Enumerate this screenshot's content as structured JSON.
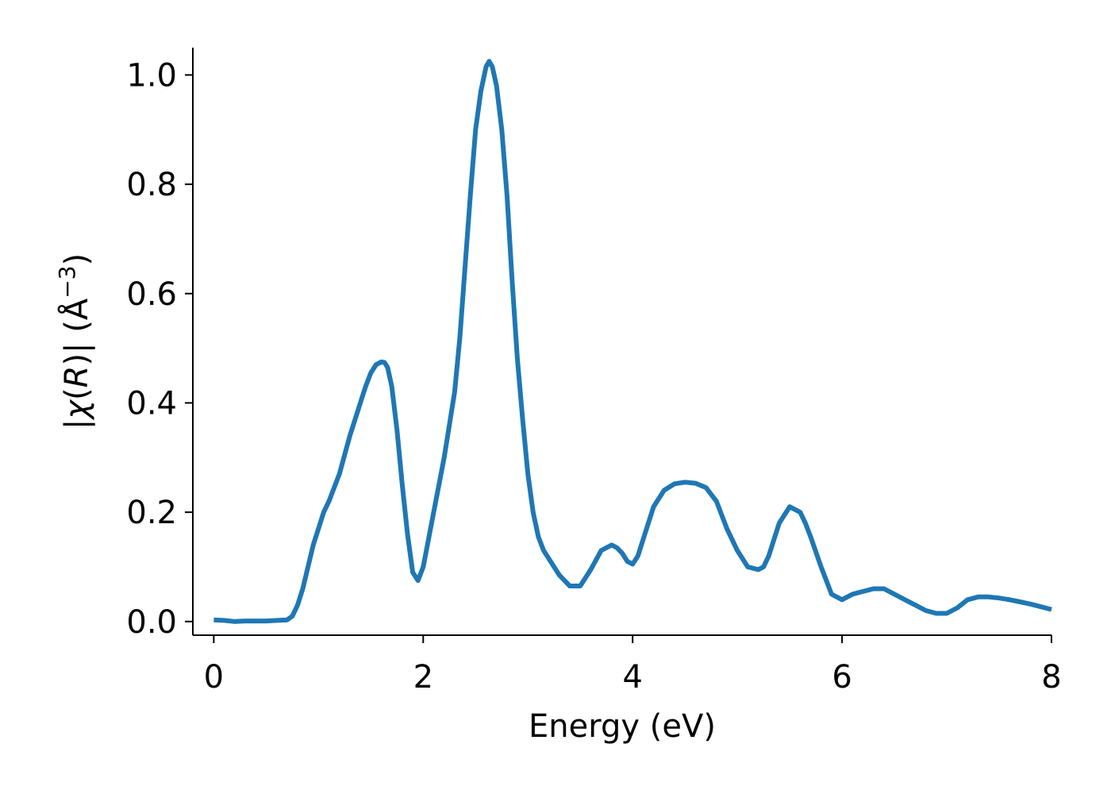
{
  "chart_data": {
    "type": "line",
    "xlabel": "Energy (eV)",
    "ylabel_parts": [
      "|",
      "χ",
      "(",
      "R",
      ")| (Å",
      "−3",
      ")"
    ],
    "xlim": [
      -0.2,
      8.0
    ],
    "ylim": [
      -0.025,
      1.05
    ],
    "xticks": [
      0,
      2,
      4,
      6,
      8
    ],
    "xtick_labels": [
      "0",
      "2",
      "4",
      "6",
      "8"
    ],
    "yticks": [
      0.0,
      0.2,
      0.4,
      0.6,
      0.8,
      1.0
    ],
    "ytick_labels": [
      "0.0",
      "0.2",
      "0.4",
      "0.6",
      "0.8",
      "1.0"
    ],
    "grid": false,
    "line_color": "#1f77b4",
    "series": [
      {
        "x": [
          0.0,
          0.1,
          0.2,
          0.3,
          0.5,
          0.6,
          0.7,
          0.75,
          0.8,
          0.85,
          0.9,
          0.95,
          1.0,
          1.05,
          1.1,
          1.2,
          1.3,
          1.35,
          1.4,
          1.45,
          1.5,
          1.55,
          1.6,
          1.63,
          1.66,
          1.7,
          1.75,
          1.8,
          1.85,
          1.9,
          1.95,
          2.0,
          2.03,
          2.06,
          2.1,
          2.2,
          2.3,
          2.35,
          2.4,
          2.45,
          2.5,
          2.55,
          2.6,
          2.63,
          2.66,
          2.7,
          2.75,
          2.8,
          2.85,
          2.9,
          2.95,
          3.0,
          3.05,
          3.1,
          3.15,
          3.2,
          3.3,
          3.4,
          3.5,
          3.6,
          3.7,
          3.8,
          3.85,
          3.9,
          3.95,
          4.0,
          4.05,
          4.1,
          4.2,
          4.3,
          4.4,
          4.5,
          4.6,
          4.7,
          4.8,
          4.9,
          5.0,
          5.1,
          5.2,
          5.25,
          5.3,
          5.35,
          5.4,
          5.5,
          5.6,
          5.65,
          5.7,
          5.8,
          5.9,
          6.0,
          6.05,
          6.1,
          6.2,
          6.3,
          6.4,
          6.5,
          6.6,
          6.7,
          6.8,
          6.9,
          7.0,
          7.1,
          7.2,
          7.3,
          7.4,
          7.5,
          7.6,
          7.7,
          7.8,
          7.9,
          8.0
        ],
        "y": [
          0.003,
          0.002,
          0.0,
          0.001,
          0.001,
          0.002,
          0.003,
          0.01,
          0.03,
          0.06,
          0.1,
          0.14,
          0.17,
          0.2,
          0.22,
          0.27,
          0.34,
          0.37,
          0.4,
          0.43,
          0.455,
          0.47,
          0.475,
          0.474,
          0.465,
          0.43,
          0.35,
          0.25,
          0.16,
          0.09,
          0.075,
          0.1,
          0.13,
          0.16,
          0.2,
          0.3,
          0.42,
          0.52,
          0.65,
          0.78,
          0.9,
          0.97,
          1.015,
          1.025,
          1.015,
          0.98,
          0.9,
          0.78,
          0.62,
          0.48,
          0.37,
          0.27,
          0.2,
          0.155,
          0.13,
          0.115,
          0.085,
          0.065,
          0.065,
          0.095,
          0.13,
          0.14,
          0.135,
          0.125,
          0.11,
          0.105,
          0.12,
          0.15,
          0.21,
          0.24,
          0.252,
          0.255,
          0.253,
          0.245,
          0.22,
          0.17,
          0.13,
          0.1,
          0.095,
          0.1,
          0.12,
          0.15,
          0.18,
          0.21,
          0.2,
          0.18,
          0.155,
          0.1,
          0.05,
          0.04,
          0.045,
          0.05,
          0.055,
          0.06,
          0.06,
          0.05,
          0.04,
          0.03,
          0.02,
          0.015,
          0.015,
          0.025,
          0.04,
          0.045,
          0.045,
          0.043,
          0.04,
          0.036,
          0.032,
          0.027,
          0.022
        ]
      }
    ]
  }
}
